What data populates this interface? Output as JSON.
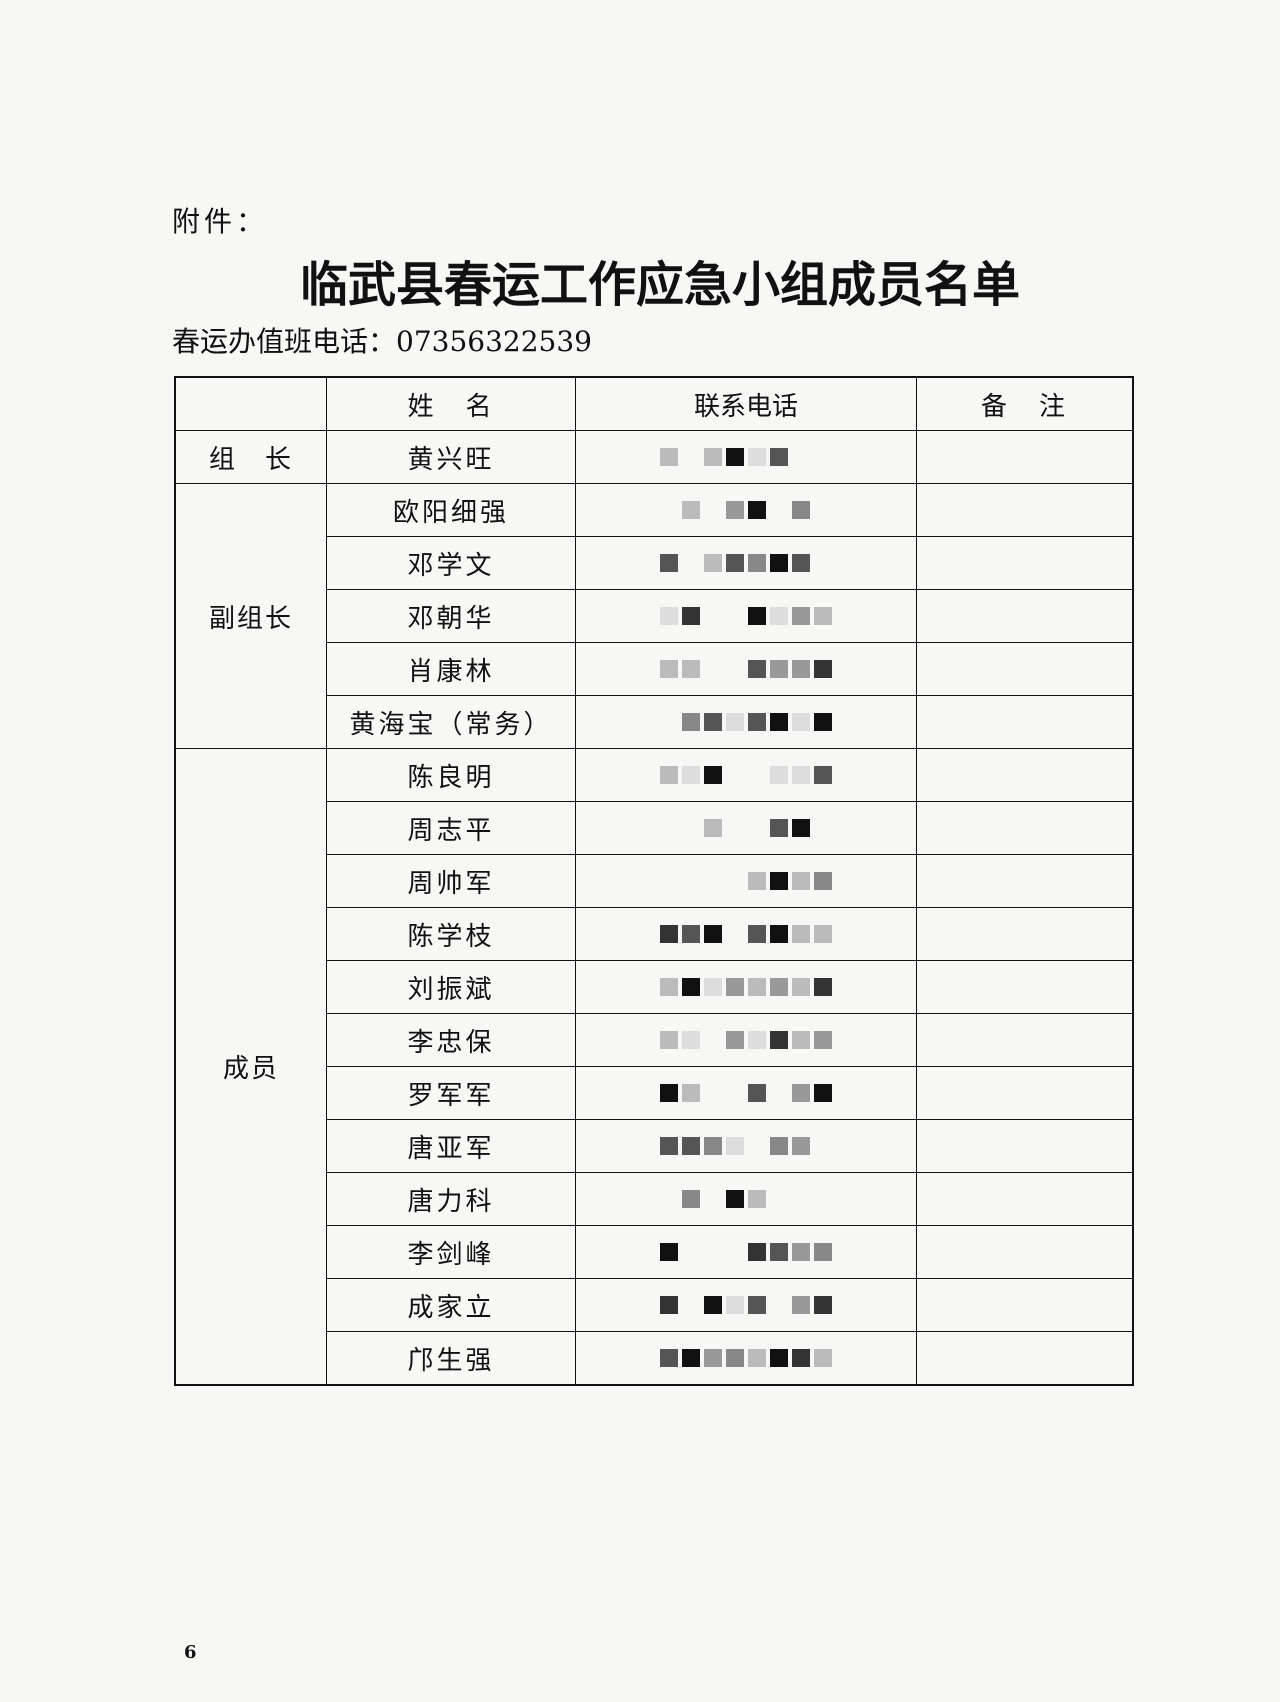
{
  "document": {
    "attachment_label": "附件：",
    "title": "临武县春运工作应急小组成员名单",
    "hotline": "春运办值班电话：07356322539",
    "table": {
      "headers": [
        "",
        "姓　名",
        "联系电话",
        "备　注"
      ],
      "groups": [
        {
          "role": "组　长",
          "members": [
            "黄兴旺"
          ]
        },
        {
          "role": "副组长",
          "members": [
            "欧阳细强",
            "邓学文",
            "邓朝华",
            "肖康林",
            "黄海宝（常务）"
          ]
        },
        {
          "role": "成员",
          "members": [
            "陈良明",
            "周志平",
            "周帅军",
            "陈学枝",
            "刘振斌",
            "李忠保",
            "罗军军",
            "唐亚军",
            "唐力科",
            "李剑峰",
            "成家立",
            "邝生强"
          ]
        }
      ],
      "phone_redacted": true
    },
    "page_number": "6"
  }
}
